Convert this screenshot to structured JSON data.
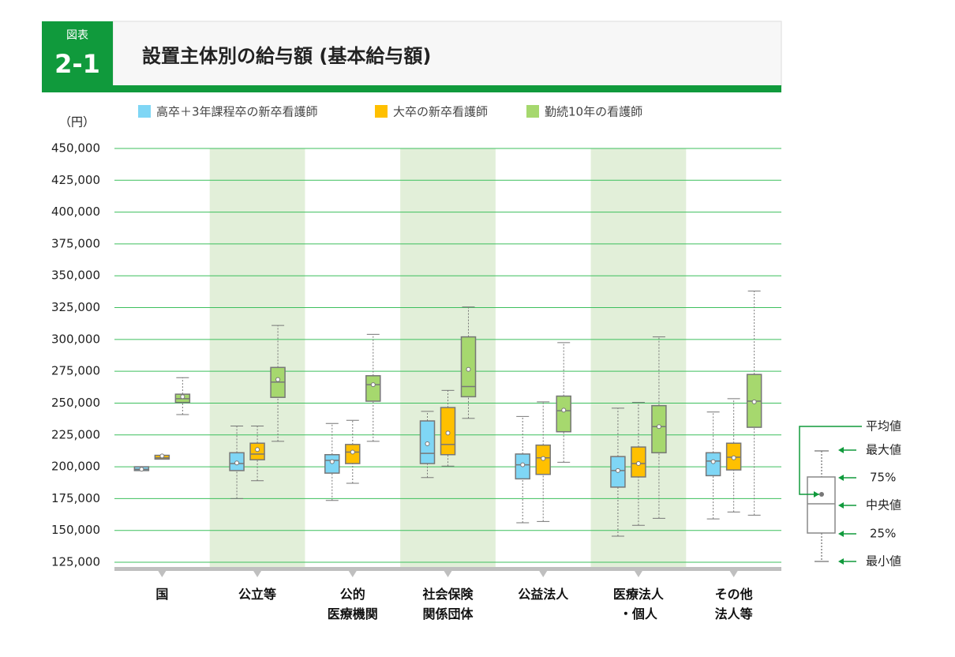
{
  "header": {
    "label": "図表",
    "number": "2-1",
    "title": "設置主体別の給与額 (基本給与額)"
  },
  "chart_data": {
    "type": "box",
    "y_unit": "（円）",
    "categories": [
      "国",
      "公立等",
      "公的\n医療機関",
      "社会保険\n関係団体",
      "公益法人",
      "医療法人\n・個人",
      "その他\n法人等"
    ],
    "ylim": [
      125000,
      450000
    ],
    "yticks": [
      {
        "value": 125000,
        "label": "125,000"
      },
      {
        "value": 150000,
        "label": "150,000"
      },
      {
        "value": 175000,
        "label": "175,000"
      },
      {
        "value": 200000,
        "label": "200,000"
      },
      {
        "value": 225000,
        "label": "225,000"
      },
      {
        "value": 250000,
        "label": "250,000"
      },
      {
        "value": 275000,
        "label": "275,000"
      },
      {
        "value": 300000,
        "label": "300,000"
      },
      {
        "value": 325000,
        "label": "325,000"
      },
      {
        "value": 350000,
        "label": "350,000"
      },
      {
        "value": 375000,
        "label": "375,000"
      },
      {
        "value": 400000,
        "label": "400,000"
      },
      {
        "value": 425000,
        "label": "425,000"
      },
      {
        "value": 450000,
        "label": "450,000"
      }
    ],
    "grid": true,
    "series": [
      {
        "name": "高卒＋3年課程卒の新卒看護師",
        "color": "#7fd6f5",
        "boxes": [
          {
            "min": 197000,
            "q1": 197000,
            "median": 198000,
            "q3": 200000,
            "max": 200000,
            "mean": 198000
          },
          {
            "min": 175000,
            "q1": 197000,
            "median": 202500,
            "q3": 211000,
            "max": 232000,
            "mean": 203000
          },
          {
            "min": 173500,
            "q1": 195000,
            "median": 205000,
            "q3": 209500,
            "max": 234000,
            "mean": 204000
          },
          {
            "min": 191500,
            "q1": 202500,
            "median": 210500,
            "q3": 236000,
            "max": 243500,
            "mean": 218000
          },
          {
            "min": 156000,
            "q1": 190500,
            "median": 201500,
            "q3": 210000,
            "max": 239500,
            "mean": 201500
          },
          {
            "min": 145500,
            "q1": 184000,
            "median": 197000,
            "q3": 208000,
            "max": 246000,
            "mean": 197000
          },
          {
            "min": 159000,
            "q1": 193000,
            "median": 204500,
            "q3": 211000,
            "max": 243000,
            "mean": 204000
          }
        ]
      },
      {
        "name": "大卒の新卒看護師",
        "color": "#ffc000",
        "boxes": [
          {
            "min": 206000,
            "q1": 206000,
            "median": 207000,
            "q3": 209000,
            "max": 209000,
            "mean": 208500
          },
          {
            "min": 189000,
            "q1": 205500,
            "median": 210000,
            "q3": 218500,
            "max": 232000,
            "mean": 213500
          },
          {
            "min": 187000,
            "q1": 202500,
            "median": 211500,
            "q3": 217500,
            "max": 236500,
            "mean": 211500
          },
          {
            "min": 200500,
            "q1": 209500,
            "median": 217500,
            "q3": 246500,
            "max": 260000,
            "mean": 226500
          },
          {
            "min": 157000,
            "q1": 194000,
            "median": 207000,
            "q3": 217000,
            "max": 251000,
            "mean": 206500
          },
          {
            "min": 154000,
            "q1": 192000,
            "median": 202500,
            "q3": 215500,
            "max": 250500,
            "mean": 202500
          },
          {
            "min": 164500,
            "q1": 197500,
            "median": 207500,
            "q3": 218500,
            "max": 253500,
            "mean": 207000
          }
        ]
      },
      {
        "name": "勤続10年の看護師",
        "color": "#a6d86e",
        "boxes": [
          {
            "min": 241000,
            "q1": 250500,
            "median": 253500,
            "q3": 257000,
            "max": 270000,
            "mean": 255000
          },
          {
            "min": 220000,
            "q1": 254500,
            "median": 266500,
            "q3": 278000,
            "max": 311000,
            "mean": 268500
          },
          {
            "min": 220000,
            "q1": 251500,
            "median": 264500,
            "q3": 271500,
            "max": 304000,
            "mean": 264500
          },
          {
            "min": 238000,
            "q1": 255000,
            "median": 263000,
            "q3": 302000,
            "max": 325500,
            "mean": 276500
          },
          {
            "min": 203500,
            "q1": 227500,
            "median": 244000,
            "q3": 255500,
            "max": 297500,
            "mean": 244500
          },
          {
            "min": 159500,
            "q1": 211000,
            "median": 231500,
            "q3": 248000,
            "max": 302000,
            "mean": 231500
          },
          {
            "min": 162000,
            "q1": 231000,
            "median": 251500,
            "q3": 272500,
            "max": 338000,
            "mean": 251000
          }
        ]
      }
    ]
  },
  "box_legend": {
    "mean": "平均値",
    "max": "最大値",
    "q3": "75%",
    "median": "中央値",
    "q1": "25%",
    "min": "最小値"
  }
}
